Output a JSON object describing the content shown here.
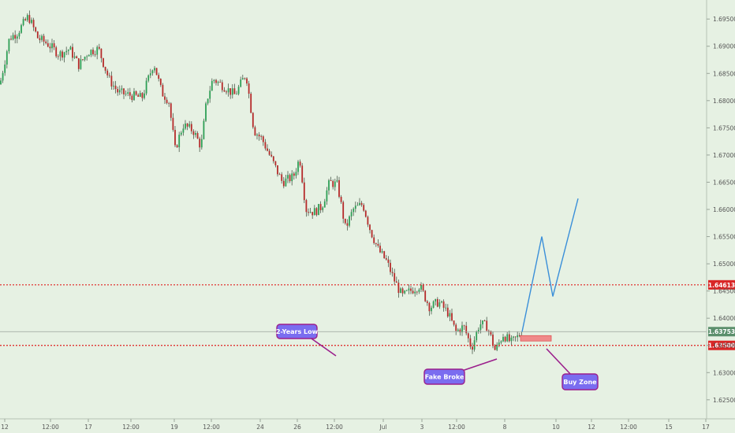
{
  "colors": {
    "background": "#e6f1e3",
    "up": "#2e9f56",
    "down": "#b52a2a",
    "wick": "#4c5b4c",
    "projection": "#3a8fd9",
    "level_line": "#e01f1f",
    "current_line": "#9aa39a",
    "current_badge": "#5b8f6c",
    "level_badge": "#d92626",
    "zone": "#f08a8a",
    "note_fill": "#7a6df0",
    "note_border": "#9b1f8c"
  },
  "chart_data": {
    "type": "candlestick",
    "title": "",
    "xlabel": "",
    "ylabel": "",
    "ylim": [
      1.6215,
      1.6985
    ],
    "y_ticks": [
      "1.69500",
      "1.69000",
      "1.68500",
      "1.68000",
      "1.67500",
      "1.67000",
      "1.66500",
      "1.66000",
      "1.65500",
      "1.65000",
      "1.64500",
      "1.64000",
      "1.63500",
      "1.63000",
      "1.62500"
    ],
    "x_ticks": [
      "12",
      "12:00",
      "17",
      "12:00",
      "19",
      "12:00",
      "24",
      "26",
      "12:00",
      "Jul",
      "3",
      "12:00",
      "8",
      "10",
      "12",
      "12:00",
      "15",
      "17"
    ],
    "grid": false,
    "current_price": {
      "label": "1.63753",
      "value": 1.63753
    },
    "levels": [
      {
        "label": "1.64613",
        "value": 1.64613,
        "style": "dotted"
      },
      {
        "label": "1.63500",
        "value": 1.635,
        "style": "dotted"
      }
    ],
    "price_path": [
      [
        0,
        1.683
      ],
      [
        12,
        1.6915
      ],
      [
        22,
        1.6925
      ],
      [
        36,
        1.6955
      ],
      [
        48,
        1.6915
      ],
      [
        60,
        1.6905
      ],
      [
        75,
        1.6885
      ],
      [
        88,
        1.6895
      ],
      [
        100,
        1.6865
      ],
      [
        112,
        1.689
      ],
      [
        125,
        1.6895
      ],
      [
        138,
        1.684
      ],
      [
        150,
        1.6815
      ],
      [
        165,
        1.681
      ],
      [
        180,
        1.6805
      ],
      [
        195,
        1.687
      ],
      [
        205,
        1.6815
      ],
      [
        214,
        1.68
      ],
      [
        222,
        1.671
      ],
      [
        232,
        1.6755
      ],
      [
        245,
        1.6745
      ],
      [
        255,
        1.6715
      ],
      [
        262,
        1.68
      ],
      [
        270,
        1.684
      ],
      [
        285,
        1.6825
      ],
      [
        298,
        1.681
      ],
      [
        312,
        1.685
      ],
      [
        322,
        1.6745
      ],
      [
        332,
        1.673
      ],
      [
        345,
        1.669
      ],
      [
        358,
        1.665
      ],
      [
        372,
        1.666
      ],
      [
        380,
        1.6695
      ],
      [
        388,
        1.66
      ],
      [
        398,
        1.6595
      ],
      [
        408,
        1.6605
      ],
      [
        418,
        1.665
      ],
      [
        428,
        1.6645
      ],
      [
        438,
        1.6565
      ],
      [
        448,
        1.66
      ],
      [
        460,
        1.661
      ],
      [
        470,
        1.656
      ],
      [
        480,
        1.6525
      ],
      [
        490,
        1.6505
      ],
      [
        500,
        1.647
      ],
      [
        510,
        1.644
      ],
      [
        520,
        1.645
      ],
      [
        532,
        1.646
      ],
      [
        545,
        1.642
      ],
      [
        556,
        1.643
      ],
      [
        568,
        1.641
      ],
      [
        578,
        1.6375
      ],
      [
        588,
        1.6385
      ],
      [
        598,
        1.6345
      ],
      [
        608,
        1.639
      ],
      [
        618,
        1.6385
      ],
      [
        628,
        1.634
      ],
      [
        638,
        1.637
      ],
      [
        648,
        1.6355
      ],
      [
        656,
        1.6365
      ],
      [
        662,
        1.6375
      ]
    ],
    "projection_path": [
      [
        662,
        1.6375
      ],
      [
        687,
        1.655
      ],
      [
        701,
        1.644
      ],
      [
        733,
        1.662
      ]
    ],
    "buy_zone": {
      "x0": 660,
      "x1": 699,
      "y_top": 1.6368,
      "y_bottom": 1.6358
    }
  },
  "annotations": [
    {
      "text": "2-Years Low"
    },
    {
      "text": "Fake Broke"
    },
    {
      "text": "Buy Zone"
    }
  ]
}
